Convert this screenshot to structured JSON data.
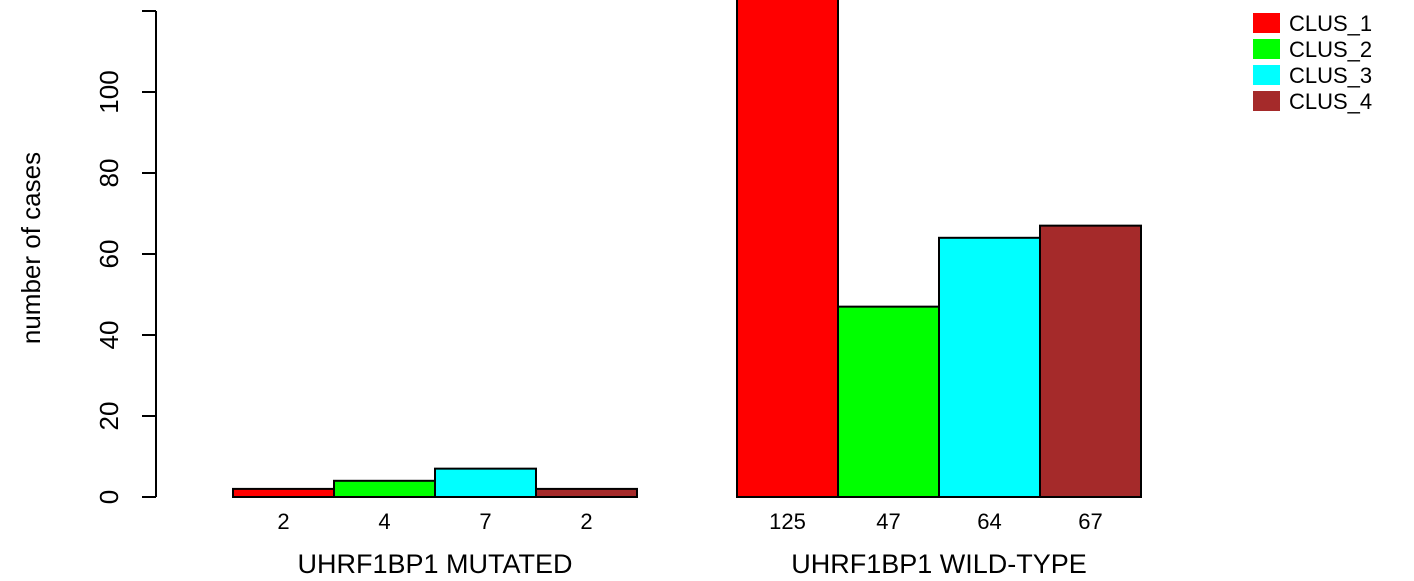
{
  "chart_data": {
    "type": "bar",
    "ylabel": "number of cases",
    "ylim": [
      0,
      125
    ],
    "yticks": [
      0,
      20,
      40,
      60,
      80,
      100
    ],
    "groups": [
      {
        "label": "UHRF1BP1 MUTATED",
        "values": [
          2,
          4,
          7,
          2
        ],
        "value_labels": [
          "2",
          "4",
          "7",
          "2"
        ]
      },
      {
        "label": "UHRF1BP1 WILD-TYPE",
        "values": [
          125,
          47,
          64,
          67
        ],
        "value_labels": [
          "125",
          "47",
          "64",
          "67"
        ]
      }
    ],
    "series": [
      {
        "name": "CLUS_1",
        "color": "#ff0000"
      },
      {
        "name": "CLUS_2",
        "color": "#00ff00"
      },
      {
        "name": "CLUS_3",
        "color": "#00ffff"
      },
      {
        "name": "CLUS_4",
        "color": "#a52a2a"
      }
    ],
    "legend_position": "top-right"
  }
}
